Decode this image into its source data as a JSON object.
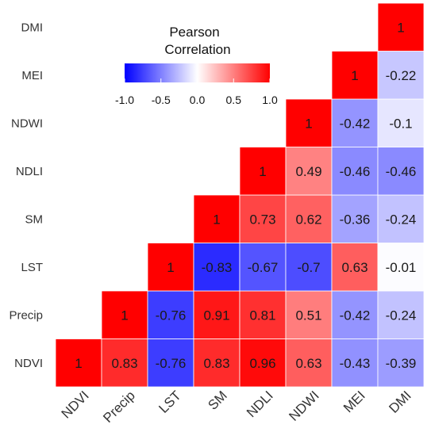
{
  "chart_data": {
    "type": "heatmap",
    "variables": [
      "NDVI",
      "Precip",
      "LST",
      "SM",
      "NDLI",
      "NDWI",
      "MEI",
      "DMI"
    ],
    "legend": {
      "title_line1": "Pearson",
      "title_line2": "Correlation",
      "range": [
        -1,
        1
      ],
      "ticks": [
        "-1.0",
        "-0.5",
        "0.0",
        "0.5",
        "1.0"
      ],
      "tick_values": [
        -1.0,
        -0.5,
        0.0,
        0.5,
        1.0
      ]
    },
    "colors": {
      "low": "#0000ff",
      "mid": "#ffffff",
      "high": "#ff0000"
    },
    "cells": [
      {
        "row": "NDVI",
        "col": "NDVI",
        "value": 1,
        "label": "1"
      },
      {
        "row": "NDVI",
        "col": "Precip",
        "value": 0.83,
        "label": "0.83"
      },
      {
        "row": "NDVI",
        "col": "LST",
        "value": -0.76,
        "label": "-0.76"
      },
      {
        "row": "NDVI",
        "col": "SM",
        "value": 0.83,
        "label": "0.83"
      },
      {
        "row": "NDVI",
        "col": "NDLI",
        "value": 0.96,
        "label": "0.96"
      },
      {
        "row": "NDVI",
        "col": "NDWI",
        "value": 0.63,
        "label": "0.63"
      },
      {
        "row": "NDVI",
        "col": "MEI",
        "value": -0.43,
        "label": "-0.43"
      },
      {
        "row": "NDVI",
        "col": "DMI",
        "value": -0.39,
        "label": "-0.39"
      },
      {
        "row": "Precip",
        "col": "Precip",
        "value": 1,
        "label": "1"
      },
      {
        "row": "Precip",
        "col": "LST",
        "value": -0.76,
        "label": "-0.76"
      },
      {
        "row": "Precip",
        "col": "SM",
        "value": 0.91,
        "label": "0.91"
      },
      {
        "row": "Precip",
        "col": "NDLI",
        "value": 0.81,
        "label": "0.81"
      },
      {
        "row": "Precip",
        "col": "NDWI",
        "value": 0.51,
        "label": "0.51"
      },
      {
        "row": "Precip",
        "col": "MEI",
        "value": -0.42,
        "label": "-0.42"
      },
      {
        "row": "Precip",
        "col": "DMI",
        "value": -0.24,
        "label": "-0.24"
      },
      {
        "row": "LST",
        "col": "LST",
        "value": 1,
        "label": "1"
      },
      {
        "row": "LST",
        "col": "SM",
        "value": -0.83,
        "label": "-0.83"
      },
      {
        "row": "LST",
        "col": "NDLI",
        "value": -0.67,
        "label": "-0.67"
      },
      {
        "row": "LST",
        "col": "NDWI",
        "value": -0.7,
        "label": "-0.7"
      },
      {
        "row": "LST",
        "col": "MEI",
        "value": 0.63,
        "label": "0.63"
      },
      {
        "row": "LST",
        "col": "DMI",
        "value": -0.01,
        "label": "-0.01"
      },
      {
        "row": "SM",
        "col": "SM",
        "value": 1,
        "label": "1"
      },
      {
        "row": "SM",
        "col": "NDLI",
        "value": 0.73,
        "label": "0.73"
      },
      {
        "row": "SM",
        "col": "NDWI",
        "value": 0.62,
        "label": "0.62"
      },
      {
        "row": "SM",
        "col": "MEI",
        "value": -0.36,
        "label": "-0.36"
      },
      {
        "row": "SM",
        "col": "DMI",
        "value": -0.24,
        "label": "-0.24"
      },
      {
        "row": "NDLI",
        "col": "NDLI",
        "value": 1,
        "label": "1"
      },
      {
        "row": "NDLI",
        "col": "NDWI",
        "value": 0.49,
        "label": "0.49"
      },
      {
        "row": "NDLI",
        "col": "MEI",
        "value": -0.46,
        "label": "-0.46"
      },
      {
        "row": "NDLI",
        "col": "DMI",
        "value": -0.46,
        "label": "-0.46"
      },
      {
        "row": "NDWI",
        "col": "NDWI",
        "value": 1,
        "label": "1"
      },
      {
        "row": "NDWI",
        "col": "MEI",
        "value": -0.42,
        "label": "-0.42"
      },
      {
        "row": "NDWI",
        "col": "DMI",
        "value": -0.1,
        "label": "-0.1"
      },
      {
        "row": "MEI",
        "col": "MEI",
        "value": 1,
        "label": "1"
      },
      {
        "row": "MEI",
        "col": "DMI",
        "value": -0.22,
        "label": "-0.22"
      },
      {
        "row": "DMI",
        "col": "DMI",
        "value": 1,
        "label": "1"
      }
    ]
  }
}
